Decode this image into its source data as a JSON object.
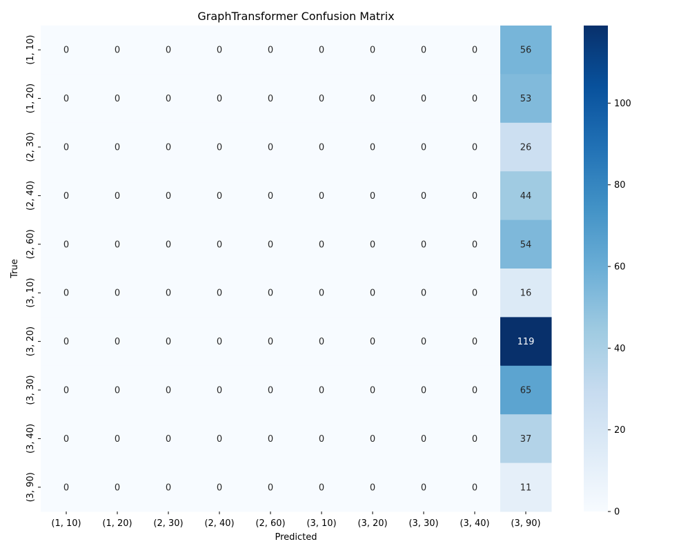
{
  "chart_data": {
    "type": "heatmap",
    "title": "GraphTransformer Confusion Matrix",
    "xlabel": "Predicted",
    "ylabel": "True",
    "x_categories": [
      "(1, 10)",
      "(1, 20)",
      "(2, 30)",
      "(2, 40)",
      "(2, 60)",
      "(3, 10)",
      "(3, 20)",
      "(3, 30)",
      "(3, 40)",
      "(3, 90)"
    ],
    "y_categories": [
      "(1, 10)",
      "(1, 20)",
      "(2, 30)",
      "(2, 40)",
      "(2, 60)",
      "(3, 10)",
      "(3, 20)",
      "(3, 30)",
      "(3, 40)",
      "(3, 90)"
    ],
    "matrix": [
      [
        0,
        0,
        0,
        0,
        0,
        0,
        0,
        0,
        0,
        56
      ],
      [
        0,
        0,
        0,
        0,
        0,
        0,
        0,
        0,
        0,
        53
      ],
      [
        0,
        0,
        0,
        0,
        0,
        0,
        0,
        0,
        0,
        26
      ],
      [
        0,
        0,
        0,
        0,
        0,
        0,
        0,
        0,
        0,
        44
      ],
      [
        0,
        0,
        0,
        0,
        0,
        0,
        0,
        0,
        0,
        54
      ],
      [
        0,
        0,
        0,
        0,
        0,
        0,
        0,
        0,
        0,
        16
      ],
      [
        0,
        0,
        0,
        0,
        0,
        0,
        0,
        0,
        0,
        119
      ],
      [
        0,
        0,
        0,
        0,
        0,
        0,
        0,
        0,
        0,
        65
      ],
      [
        0,
        0,
        0,
        0,
        0,
        0,
        0,
        0,
        0,
        37
      ],
      [
        0,
        0,
        0,
        0,
        0,
        0,
        0,
        0,
        0,
        11
      ]
    ],
    "colormap": "Blues",
    "color_range": [
      0,
      119
    ],
    "colorbar_ticks": [
      0,
      20,
      40,
      60,
      80,
      100
    ],
    "colors": {
      "low": "#f7fbff",
      "high": "#08306b"
    }
  }
}
